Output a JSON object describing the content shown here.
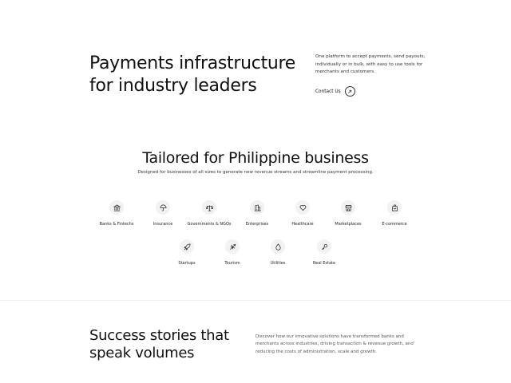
{
  "hero": {
    "title_line1": "Payments infrastructure",
    "title_line2": "for industry leaders",
    "description": "One platform to accept payments, send payouts, individually or in bulk, with easy to use tools for merchants and customers.",
    "contact_label": "Contact Us"
  },
  "industries_section": {
    "title": "Tailored for Philippine business",
    "subtitle": "Designed for businesses of all sizes to generate new revenue streams and streamline payment processing.",
    "items": [
      {
        "label": "Banks & Fintechs",
        "icon": "bank-icon"
      },
      {
        "label": "Insurance",
        "icon": "umbrella-icon"
      },
      {
        "label": "Governments & NGOs",
        "icon": "scale-icon"
      },
      {
        "label": "Enterprises",
        "icon": "building-icon"
      },
      {
        "label": "Healthcare",
        "icon": "heart-icon"
      },
      {
        "label": "Marketplaces",
        "icon": "store-icon"
      },
      {
        "label": "E-commerce",
        "icon": "shopping-bag-icon"
      },
      {
        "label": "Startups",
        "icon": "rocket-icon"
      },
      {
        "label": "Tourism",
        "icon": "plane-icon"
      },
      {
        "label": "Utilities",
        "icon": "droplet-icon"
      },
      {
        "label": "Real Estate",
        "icon": "key-icon"
      }
    ]
  },
  "stories": {
    "title_line1": "Success stories that",
    "title_line2": "speak volumes",
    "description": "Discover how our innovative solutions have transformed banks and merchants across industries, driving transaction & revenue growth, and reducing the costs of administration, scale and growth."
  }
}
